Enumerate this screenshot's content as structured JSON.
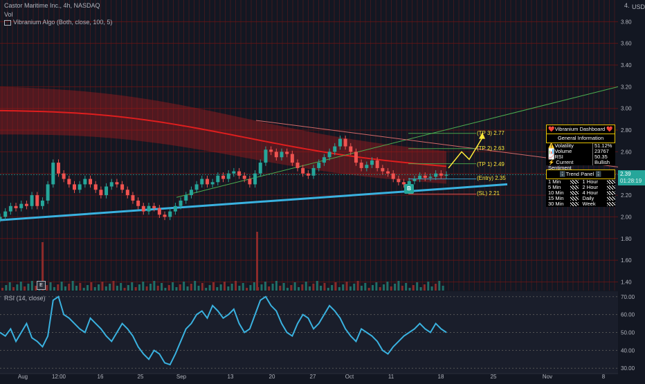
{
  "header": {
    "title": "Castor Maritime Inc., 4h, NASDAQ",
    "vol_label": "Vol",
    "indicator_label": "Vibranium Algo (Both, close, 100, 5)",
    "rsi_label": "RSI (14, close)"
  },
  "price_axis": {
    "currency": "USD",
    "top_value": "4.",
    "last_price": "2.39",
    "countdown": "01:28:19"
  },
  "levels": {
    "tp3": "(TP 3) 2.77",
    "tp2": "(TP 2) 2.63",
    "tp1": "(TP 1) 2.49",
    "entry": "(Entry) 2.35",
    "sl": "(SL) 2.21"
  },
  "markers": {
    "buy": "B",
    "earnings": "E"
  },
  "dashboard": {
    "title": "❤️Vibranium Dashboard ❤️",
    "section_general": "General Information",
    "rows": [
      {
        "k": "⚠️Volatility",
        "v": "51.12%"
      },
      {
        "k": "📊Volume",
        "v": "23767"
      },
      {
        "k": "📈RSI",
        "v": "50.35"
      },
      {
        "k": "⚡ Current Sentiment",
        "v": "Bullish"
      }
    ],
    "section_trend": "🗄️Trend Panel 🗄️",
    "trend_rows": [
      {
        "a": "1 Min",
        "c": "1 Hour"
      },
      {
        "a": "5 Min",
        "c": "2 Hour"
      },
      {
        "a": "10 Min",
        "c": "4 Hour"
      },
      {
        "a": "15 Min",
        "c": "Daily"
      },
      {
        "a": "30 Min",
        "c": "Week"
      }
    ]
  },
  "colors": {
    "background": "#131722",
    "grid": "#8b1a1a",
    "up": "#26a69a",
    "down": "#ef5350",
    "trend_line": "#3ab2e0",
    "projection": "#ffeb3b",
    "ema": "#e01e1e",
    "rsi": "#3ab2e0"
  },
  "chart_data": [
    {
      "type": "candlestick",
      "title": "Castor Maritime Inc., 4h, NASDAQ",
      "ylabel": "USD",
      "yticks": [
        "3.80",
        "3.60",
        "3.40",
        "3.20",
        "3.00",
        "2.80",
        "2.60",
        "2.40",
        "2.20",
        "2.00",
        "1.80",
        "1.60",
        "1.40"
      ],
      "ylim": [
        1.32,
        4.0
      ],
      "xticks": [
        "Aug",
        "12:00",
        "16",
        "25",
        "Sep",
        "13",
        "20",
        "27",
        "Oct",
        "11",
        "18",
        "25",
        "Nov",
        "8"
      ],
      "close_series": [
        2.0,
        2.05,
        2.1,
        2.08,
        2.12,
        2.1,
        2.2,
        2.1,
        2.15,
        2.3,
        2.5,
        2.4,
        2.35,
        2.3,
        2.25,
        2.3,
        2.35,
        2.3,
        2.25,
        2.2,
        2.28,
        2.32,
        2.3,
        2.25,
        2.2,
        2.15,
        2.1,
        2.05,
        2.1,
        2.08,
        2.02,
        2.0,
        2.05,
        2.1,
        2.15,
        2.2,
        2.25,
        2.3,
        2.35,
        2.3,
        2.32,
        2.38,
        2.35,
        2.4,
        2.42,
        2.38,
        2.35,
        2.3,
        2.4,
        2.5,
        2.62,
        2.6,
        2.55,
        2.6,
        2.58,
        2.5,
        2.45,
        2.4,
        2.38,
        2.45,
        2.5,
        2.55,
        2.6,
        2.65,
        2.72,
        2.65,
        2.6,
        2.5,
        2.45,
        2.48,
        2.52,
        2.45,
        2.42,
        2.4,
        2.35,
        2.32,
        2.3,
        2.33,
        2.35,
        2.38,
        2.36,
        2.37,
        2.4,
        2.38,
        2.39
      ],
      "levels": {
        "tp3": 2.77,
        "tp2": 2.63,
        "tp1": 2.49,
        "entry": 2.35,
        "sl": 2.21
      },
      "last_price": 2.39,
      "annotations": [
        "B",
        "E"
      ]
    },
    {
      "type": "line",
      "title": "RSI (14, close)",
      "yticks": [
        "70.00",
        "60.00",
        "50.00",
        "40.00",
        "30.00"
      ],
      "ylim": [
        27,
        73
      ],
      "series": [
        {
          "name": "RSI (14, close)",
          "values": [
            50,
            48,
            52,
            45,
            50,
            55,
            47,
            45,
            42,
            48,
            68,
            70,
            60,
            58,
            55,
            52,
            50,
            58,
            55,
            52,
            48,
            45,
            50,
            55,
            52,
            48,
            42,
            38,
            35,
            40,
            38,
            33,
            32,
            38,
            45,
            52,
            55,
            60,
            62,
            58,
            65,
            62,
            58,
            60,
            63,
            55,
            50,
            52,
            60,
            68,
            70,
            65,
            62,
            55,
            50,
            48,
            55,
            60,
            58,
            52,
            55,
            60,
            65,
            62,
            58,
            52,
            48,
            45,
            52,
            50,
            48,
            45,
            40,
            38,
            42,
            45,
            48,
            50,
            52,
            55,
            52,
            50,
            55,
            52,
            50
          ]
        }
      ]
    }
  ]
}
